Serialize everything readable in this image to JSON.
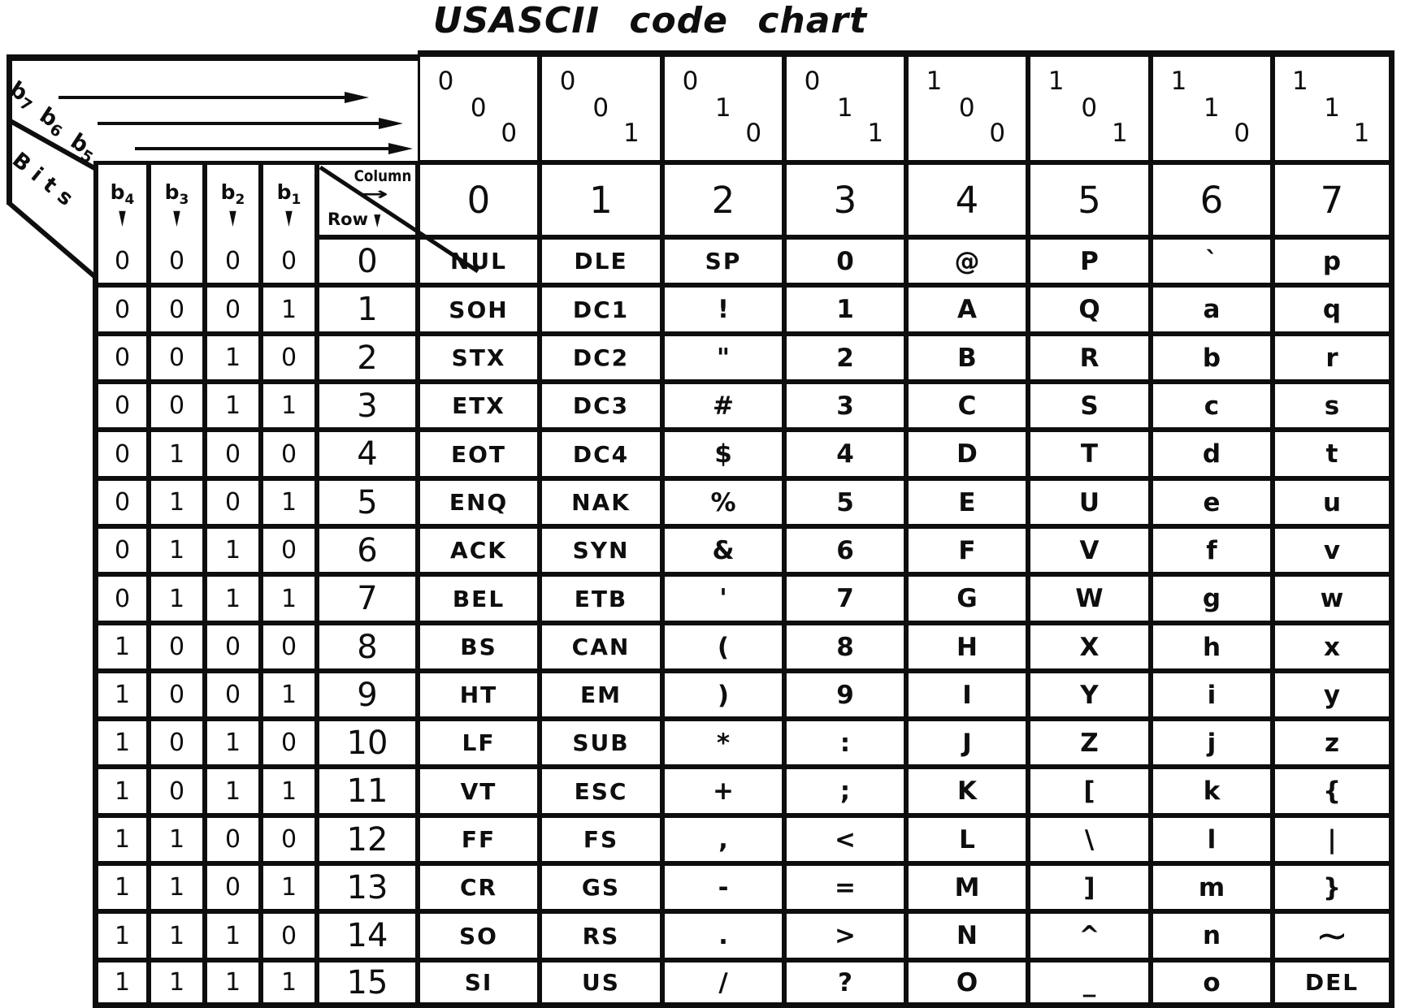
{
  "title": "USASCII code chart",
  "corner": {
    "bits_word": "Bits",
    "high_bits": [
      {
        "base": "b",
        "sub": "7"
      },
      {
        "base": "b",
        "sub": "6"
      },
      {
        "base": "b",
        "sub": "5"
      }
    ],
    "low_bits": [
      {
        "base": "b",
        "sub": "4"
      },
      {
        "base": "b",
        "sub": "3"
      },
      {
        "base": "b",
        "sub": "2"
      },
      {
        "base": "b",
        "sub": "1"
      }
    ],
    "column_word": "Column",
    "row_word": "Row"
  },
  "icons": {
    "down_arrow": "▼",
    "right_arrow": "→"
  },
  "ink_color": "#0e0e0e",
  "paper_color": "#ffffff",
  "columns": [
    {
      "bits": [
        "0",
        "0",
        "0"
      ],
      "number": "0"
    },
    {
      "bits": [
        "0",
        "0",
        "1"
      ],
      "number": "1"
    },
    {
      "bits": [
        "0",
        "1",
        "0"
      ],
      "number": "2"
    },
    {
      "bits": [
        "0",
        "1",
        "1"
      ],
      "number": "3"
    },
    {
      "bits": [
        "1",
        "0",
        "0"
      ],
      "number": "4"
    },
    {
      "bits": [
        "1",
        "0",
        "1"
      ],
      "number": "5"
    },
    {
      "bits": [
        "1",
        "1",
        "0"
      ],
      "number": "6"
    },
    {
      "bits": [
        "1",
        "1",
        "1"
      ],
      "number": "7"
    }
  ],
  "rows": [
    {
      "bits": [
        "0",
        "0",
        "0",
        "0"
      ],
      "number": "0",
      "cells": [
        "NUL",
        "DLE",
        "SP",
        "0",
        "@",
        "P",
        "`",
        "p"
      ]
    },
    {
      "bits": [
        "0",
        "0",
        "0",
        "1"
      ],
      "number": "1",
      "cells": [
        "SOH",
        "DC1",
        "!",
        "1",
        "A",
        "Q",
        "a",
        "q"
      ]
    },
    {
      "bits": [
        "0",
        "0",
        "1",
        "0"
      ],
      "number": "2",
      "cells": [
        "STX",
        "DC2",
        "\"",
        "2",
        "B",
        "R",
        "b",
        "r"
      ]
    },
    {
      "bits": [
        "0",
        "0",
        "1",
        "1"
      ],
      "number": "3",
      "cells": [
        "ETX",
        "DC3",
        "#",
        "3",
        "C",
        "S",
        "c",
        "s"
      ]
    },
    {
      "bits": [
        "0",
        "1",
        "0",
        "0"
      ],
      "number": "4",
      "cells": [
        "EOT",
        "DC4",
        "$",
        "4",
        "D",
        "T",
        "d",
        "t"
      ]
    },
    {
      "bits": [
        "0",
        "1",
        "0",
        "1"
      ],
      "number": "5",
      "cells": [
        "ENQ",
        "NAK",
        "%",
        "5",
        "E",
        "U",
        "e",
        "u"
      ]
    },
    {
      "bits": [
        "0",
        "1",
        "1",
        "0"
      ],
      "number": "6",
      "cells": [
        "ACK",
        "SYN",
        "&",
        "6",
        "F",
        "V",
        "f",
        "v"
      ]
    },
    {
      "bits": [
        "0",
        "1",
        "1",
        "1"
      ],
      "number": "7",
      "cells": [
        "BEL",
        "ETB",
        "'",
        "7",
        "G",
        "W",
        "g",
        "w"
      ]
    },
    {
      "bits": [
        "1",
        "0",
        "0",
        "0"
      ],
      "number": "8",
      "cells": [
        "BS",
        "CAN",
        "(",
        "8",
        "H",
        "X",
        "h",
        "x"
      ]
    },
    {
      "bits": [
        "1",
        "0",
        "0",
        "1"
      ],
      "number": "9",
      "cells": [
        "HT",
        "EM",
        ")",
        "9",
        "I",
        "Y",
        "i",
        "y"
      ]
    },
    {
      "bits": [
        "1",
        "0",
        "1",
        "0"
      ],
      "number": "10",
      "cells": [
        "LF",
        "SUB",
        "*",
        ":",
        "J",
        "Z",
        "j",
        "z"
      ]
    },
    {
      "bits": [
        "1",
        "0",
        "1",
        "1"
      ],
      "number": "11",
      "cells": [
        "VT",
        "ESC",
        "+",
        ";",
        "K",
        "[",
        "k",
        "{"
      ]
    },
    {
      "bits": [
        "1",
        "1",
        "0",
        "0"
      ],
      "number": "12",
      "cells": [
        "FF",
        "FS",
        ",",
        "<",
        "L",
        "\\",
        "l",
        "|"
      ]
    },
    {
      "bits": [
        "1",
        "1",
        "0",
        "1"
      ],
      "number": "13",
      "cells": [
        "CR",
        "GS",
        "-",
        "=",
        "M",
        "]",
        "m",
        "}"
      ]
    },
    {
      "bits": [
        "1",
        "1",
        "1",
        "0"
      ],
      "number": "14",
      "cells": [
        "SO",
        "RS",
        ".",
        ">",
        "N",
        "^",
        "n",
        "~"
      ]
    },
    {
      "bits": [
        "1",
        "1",
        "1",
        "1"
      ],
      "number": "15",
      "cells": [
        "SI",
        "US",
        "/",
        "?",
        "O",
        "_",
        "o",
        "DEL"
      ]
    }
  ]
}
